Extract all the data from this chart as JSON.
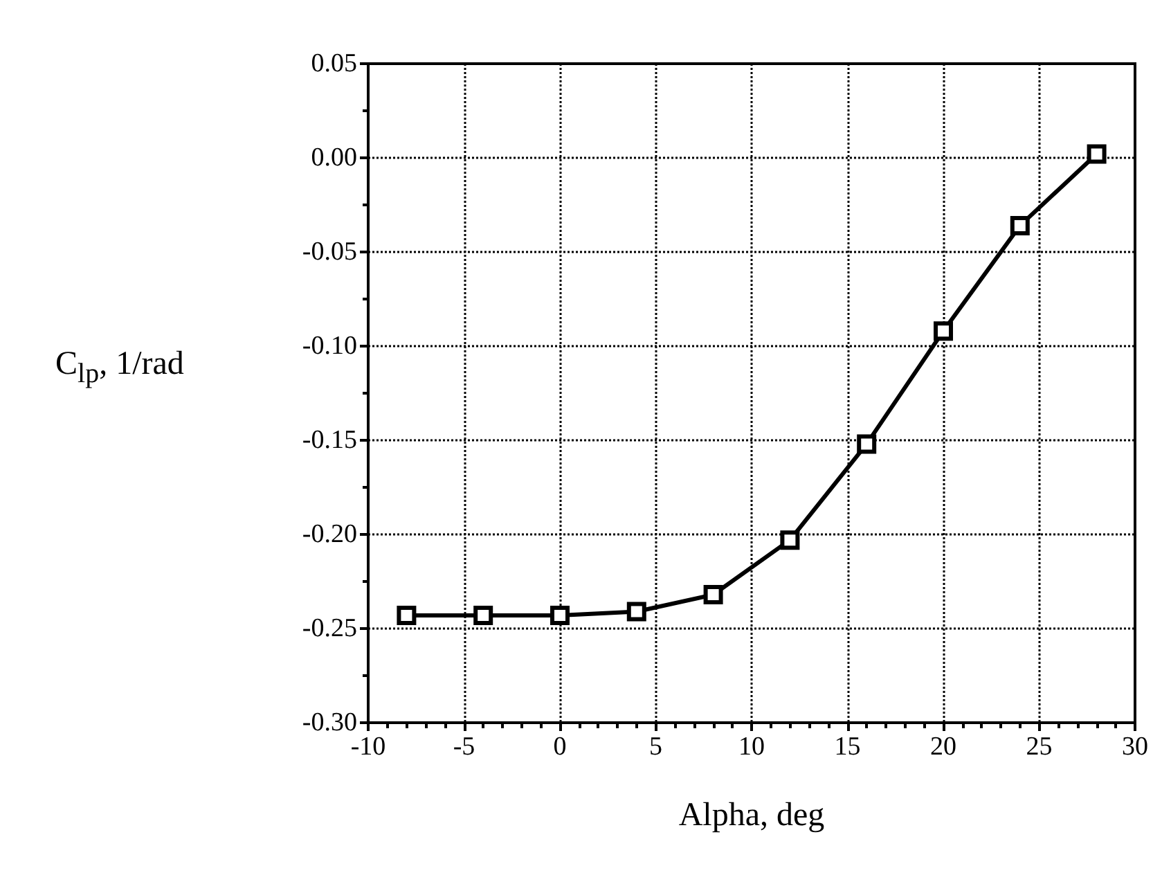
{
  "chart_data": {
    "type": "line",
    "xlabel": "Alpha, deg",
    "ylabel": "C$_{lp}$,  1/rad",
    "x": [
      -8,
      -4,
      0,
      4,
      8,
      12,
      16,
      20,
      24,
      28
    ],
    "series": [
      {
        "color": "#000000",
        "values": [
          -0.243,
          -0.243,
          -0.243,
          -0.241,
          -0.232,
          -0.203,
          -0.152,
          -0.092,
          -0.036,
          0.002
        ]
      }
    ],
    "xlim": [
      -10,
      30
    ],
    "xticks": [
      -10,
      -5,
      0,
      5,
      10,
      15,
      20,
      25,
      30
    ],
    "ylim": [
      -0.3,
      0.05
    ],
    "yticks": [
      {
        "value": -0.3,
        "label": "-0.30"
      },
      {
        "value": -0.25,
        "label": "-0.25"
      },
      {
        "value": -0.2,
        "label": "-0.20"
      },
      {
        "value": -0.15,
        "label": "-0.15"
      },
      {
        "value": -0.1,
        "label": "-0.10"
      },
      {
        "value": -0.05,
        "label": "-0.05"
      },
      {
        "value": 0,
        "label": "0.00"
      },
      {
        "value": 0.05,
        "label": "0.05"
      }
    ],
    "grid": true,
    "marker": "square",
    "line_style": "solid"
  }
}
